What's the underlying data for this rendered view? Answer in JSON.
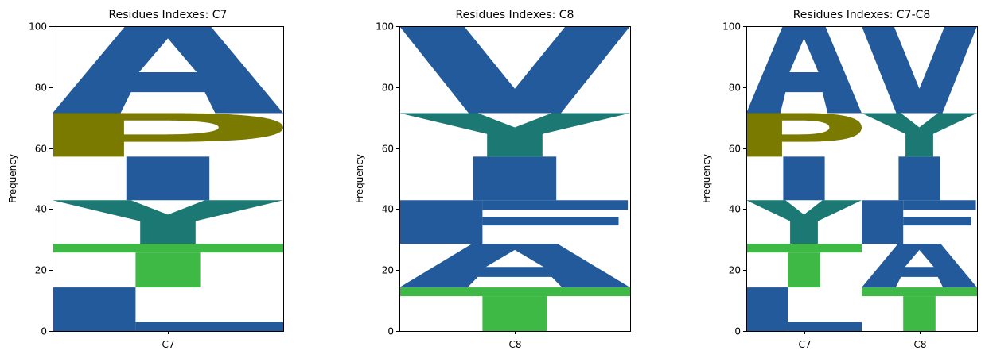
{
  "chart_data": [
    {
      "type": "logo",
      "title": "Residues Indexes: C7",
      "ylabel": "Frequency",
      "ylim": [
        0,
        100
      ],
      "yticks": [
        0,
        20,
        40,
        60,
        80,
        100
      ],
      "categories": [
        "C7"
      ],
      "stacks": [
        [
          {
            "residue": "L",
            "value": 14.3,
            "color": "#235a9b"
          },
          {
            "residue": "T",
            "value": 14.3,
            "color": "#3fb945"
          },
          {
            "residue": "Y",
            "value": 14.3,
            "color": "#1b7873"
          },
          {
            "residue": "I",
            "value": 14.3,
            "color": "#235a9b"
          },
          {
            "residue": "P",
            "value": 14.3,
            "color": "#7a7900"
          },
          {
            "residue": "A",
            "value": 28.5,
            "color": "#235a9b"
          }
        ]
      ]
    },
    {
      "type": "logo",
      "title": "Residues Indexes: C8",
      "ylabel": "Frequency",
      "ylim": [
        0,
        100
      ],
      "yticks": [
        0,
        20,
        40,
        60,
        80,
        100
      ],
      "categories": [
        "C8"
      ],
      "stacks": [
        [
          {
            "residue": "T",
            "value": 14.3,
            "color": "#3fb945"
          },
          {
            "residue": "A",
            "value": 14.3,
            "color": "#235a9b"
          },
          {
            "residue": "F",
            "value": 14.3,
            "color": "#235a9b"
          },
          {
            "residue": "I",
            "value": 14.3,
            "color": "#235a9b"
          },
          {
            "residue": "Y",
            "value": 14.3,
            "color": "#1b7873"
          },
          {
            "residue": "V",
            "value": 28.5,
            "color": "#235a9b"
          }
        ]
      ]
    },
    {
      "type": "logo",
      "title": "Residues Indexes: C7-C8",
      "ylabel": "Frequency",
      "ylim": [
        0,
        100
      ],
      "yticks": [
        0,
        20,
        40,
        60,
        80,
        100
      ],
      "categories": [
        "C7",
        "C8"
      ],
      "stacks": [
        [
          {
            "residue": "L",
            "value": 14.3,
            "color": "#235a9b"
          },
          {
            "residue": "T",
            "value": 14.3,
            "color": "#3fb945"
          },
          {
            "residue": "Y",
            "value": 14.3,
            "color": "#1b7873"
          },
          {
            "residue": "I",
            "value": 14.3,
            "color": "#235a9b"
          },
          {
            "residue": "P",
            "value": 14.3,
            "color": "#7a7900"
          },
          {
            "residue": "A",
            "value": 28.5,
            "color": "#235a9b"
          }
        ],
        [
          {
            "residue": "T",
            "value": 14.3,
            "color": "#3fb945"
          },
          {
            "residue": "A",
            "value": 14.3,
            "color": "#235a9b"
          },
          {
            "residue": "F",
            "value": 14.3,
            "color": "#235a9b"
          },
          {
            "residue": "I",
            "value": 14.3,
            "color": "#235a9b"
          },
          {
            "residue": "Y",
            "value": 14.3,
            "color": "#1b7873"
          },
          {
            "residue": "V",
            "value": 28.5,
            "color": "#235a9b"
          }
        ]
      ]
    }
  ]
}
